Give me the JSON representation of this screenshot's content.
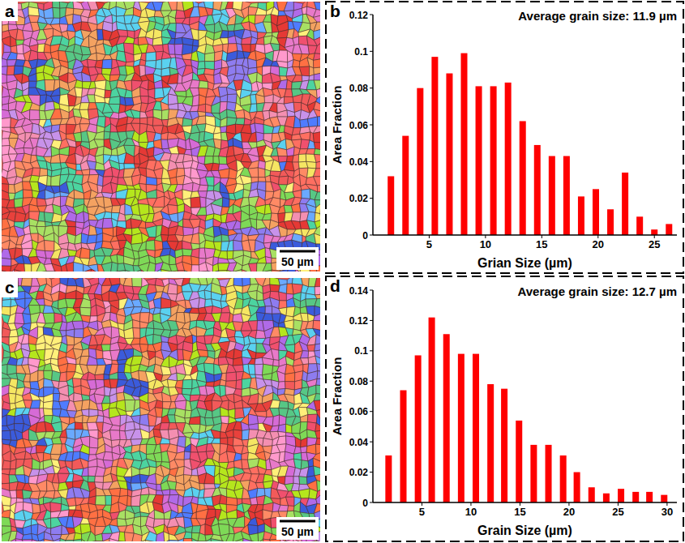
{
  "images": [
    {
      "panel_label": "a",
      "scale_bar": "50 µm"
    },
    {
      "panel_label": "c",
      "scale_bar": "50 µm"
    }
  ],
  "chart_data": [
    {
      "type": "bar",
      "panel_label": "b",
      "title": "Average grain size: 11.9 µm",
      "x_label": "Grian Size (µm)",
      "y_label": "Area Fraction",
      "x": [
        1.6,
        2.9,
        4.2,
        5.5,
        6.8,
        8.1,
        9.4,
        10.7,
        12.0,
        13.3,
        14.6,
        15.9,
        17.2,
        18.5,
        19.8,
        21.1,
        22.4,
        23.7,
        25.0,
        26.3
      ],
      "values": [
        0.032,
        0.054,
        0.08,
        0.097,
        0.088,
        0.099,
        0.081,
        0.081,
        0.083,
        0.062,
        0.049,
        0.043,
        0.043,
        0.021,
        0.025,
        0.014,
        0.034,
        0.01,
        0.003,
        0.006
      ],
      "color": "#ff0000",
      "xlim": [
        0,
        27
      ],
      "xticks": [
        5,
        10,
        15,
        20,
        25
      ],
      "ylim": [
        0,
        0.12
      ],
      "yticks": [
        0,
        0.02,
        0.04,
        0.06,
        0.08,
        0.1,
        0.12
      ],
      "grid": false
    },
    {
      "type": "bar",
      "panel_label": "d",
      "title": "Average grain size: 12.7 µm",
      "x_label": "Grain Size (µm)",
      "y_label": "Area Fraction",
      "x": [
        1.6,
        3.1,
        4.6,
        6.0,
        7.5,
        9.0,
        10.5,
        12.0,
        13.4,
        14.9,
        16.4,
        17.9,
        19.4,
        20.8,
        22.3,
        23.8,
        25.3,
        26.8,
        28.2,
        29.7
      ],
      "values": [
        0.031,
        0.074,
        0.097,
        0.122,
        0.111,
        0.098,
        0.098,
        0.078,
        0.075,
        0.054,
        0.038,
        0.038,
        0.031,
        0.02,
        0.01,
        0.006,
        0.009,
        0.007,
        0.007,
        0.005
      ],
      "color": "#ff0000",
      "xlim": [
        0,
        31
      ],
      "xticks": [
        5,
        10,
        15,
        20,
        25,
        30
      ],
      "ylim": [
        0,
        0.14
      ],
      "yticks": [
        0,
        0.02,
        0.04,
        0.06,
        0.08,
        0.1,
        0.12,
        0.14
      ],
      "grid": false
    }
  ]
}
